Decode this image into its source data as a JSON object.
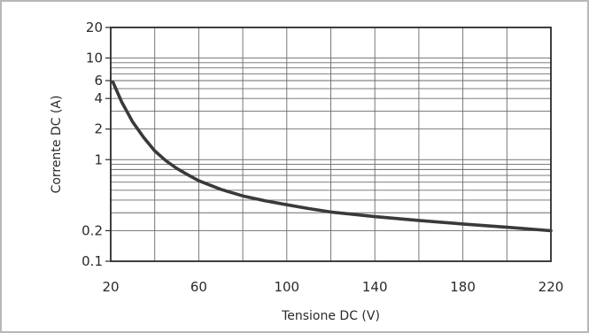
{
  "chart_data": {
    "type": "line",
    "xlabel": "Tensione DC (V)",
    "ylabel": "Corrente DC (A)",
    "x_scale": "linear",
    "y_scale": "log",
    "xlim": [
      20,
      220
    ],
    "ylim": [
      0.1,
      20
    ],
    "x_ticks": [
      20,
      60,
      100,
      140,
      180,
      220
    ],
    "x_tick_labels": [
      "20",
      "60",
      "100",
      "140",
      "180",
      "220"
    ],
    "y_ticks": [
      0.1,
      0.2,
      1,
      2,
      4,
      6,
      10,
      20
    ],
    "y_tick_labels": [
      "0.1",
      "0.2",
      "1",
      "2",
      "4",
      "6",
      "10",
      "20"
    ],
    "x_minor_grid": [
      20,
      40,
      60,
      80,
      100,
      120,
      140,
      160,
      180,
      200,
      220
    ],
    "y_minor_grid": [
      0.1,
      0.2,
      0.3,
      0.4,
      0.5,
      0.6,
      0.7,
      0.8,
      0.9,
      1,
      2,
      3,
      4,
      5,
      6,
      7,
      8,
      9,
      10,
      20
    ],
    "grid": true,
    "series": [
      {
        "color": "#3a3a3a",
        "x": [
          21,
          25,
          30,
          35,
          40,
          45,
          50,
          55,
          60,
          70,
          80,
          90,
          100,
          110,
          120,
          140,
          160,
          180,
          200,
          220
        ],
        "y": [
          5.8,
          3.7,
          2.35,
          1.65,
          1.22,
          0.98,
          0.82,
          0.71,
          0.62,
          0.51,
          0.44,
          0.395,
          0.36,
          0.33,
          0.305,
          0.275,
          0.252,
          0.233,
          0.216,
          0.2
        ]
      }
    ]
  }
}
